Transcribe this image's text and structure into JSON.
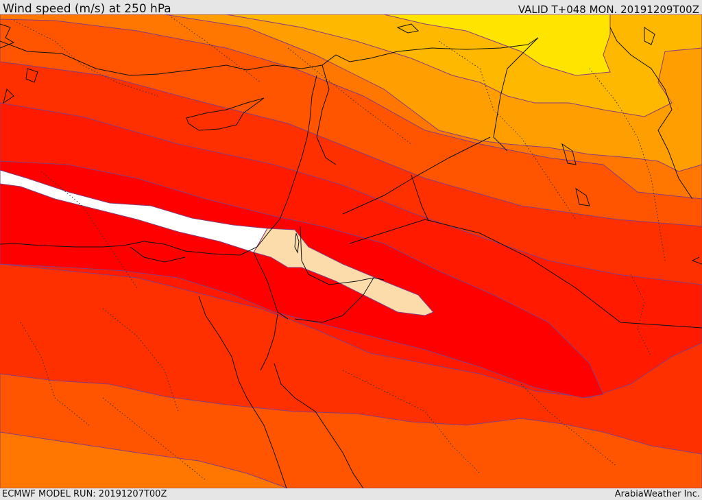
{
  "header": {
    "title": "Wind speed (m/s) at 250 hPa",
    "valid_time": "VALID T+048 MON. 20191209T00Z"
  },
  "footer": {
    "model_run": "ECMWF MODEL RUN: 20191207T00Z",
    "credit": "ArabiaWeather Inc."
  },
  "map": {
    "region": "Eastern Mediterranean / Middle East",
    "shading_bands": [
      {
        "name": "yellow",
        "color": "#ffe400"
      },
      {
        "name": "light-orange",
        "color": "#ffb800"
      },
      {
        "name": "orange",
        "color": "#ff9e00"
      },
      {
        "name": "deep-orange",
        "color": "#ff7700"
      },
      {
        "name": "red-orange",
        "color": "#ff5500"
      },
      {
        "name": "orange-red",
        "color": "#ff3000"
      },
      {
        "name": "red",
        "color": "#ff1a00"
      },
      {
        "name": "bright-red",
        "color": "#ff0000"
      },
      {
        "name": "peach",
        "color": "#fcdcaa"
      },
      {
        "name": "white",
        "color": "#ffffff"
      }
    ]
  }
}
